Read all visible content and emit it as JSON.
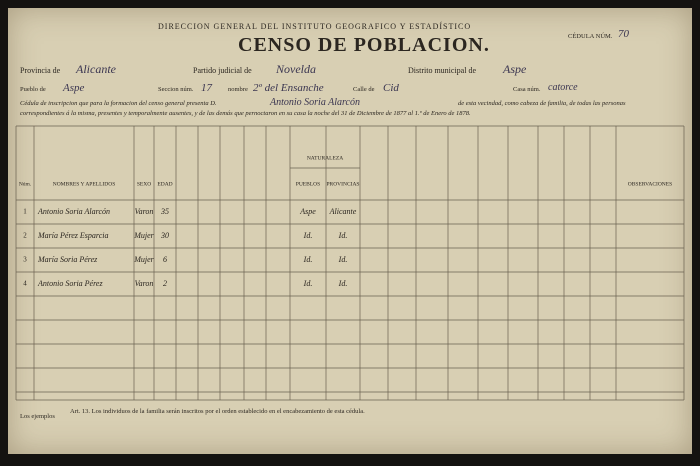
{
  "header": {
    "institution": "DIRECCION GENERAL DEL INSTITUTO GEOGRAFICO Y ESTADÍSTICO",
    "cedula_label": "CÉDULA NÚM.",
    "cedula_number": "70",
    "title": "CENSO DE POBLACION."
  },
  "fields": {
    "provincia_label": "Provincia de",
    "provincia": "Alicante",
    "partido_label": "Partido judicial de",
    "partido": "Novelda",
    "distrito_label": "Distrito municipal de",
    "distrito": "Aspe",
    "pueblo_label": "Pueblo de",
    "pueblo": "Aspe",
    "seccion_label": "Seccion núm.",
    "seccion": "17",
    "nombre_label": "nombre",
    "nombre": "2º del Ensanche",
    "calle_label": "Calle de",
    "calle": "Cid",
    "casa_label": "Casa núm.",
    "casa": "catorce"
  },
  "intro": {
    "line1_a": "Cédula de inscripcion que para la formacion del censo general presenta D.",
    "declarant": "Antonio Soria Alarcón",
    "line1_b": "de esta vecindad, como cabeza de familia, de todas las personas",
    "line2": "correspondientes á la misma, presentes y temporalmente ausentes, y de las demás que pernoctaron en su casa la noche del 31 de Diciembre de 1877 al 1.º de Enero de 1878."
  },
  "table": {
    "group_header": "NATURALEZA",
    "columns": [
      "Núm.",
      "NOMBRES Y APELLIDOS",
      "SEXO",
      "EDAD",
      "PUEBLOS",
      "PROVINCIAS",
      "OBSERVACIONES"
    ],
    "rows": [
      [
        "1",
        "Antonio Soria Alarcón",
        "Varon",
        "35",
        "Aspe",
        "Alicante",
        null
      ],
      [
        "2",
        "María Pérez Esparcia",
        "Mujer",
        "30",
        "Id.",
        "Id.",
        null
      ],
      [
        "3",
        "María Soria Pérez",
        "Mujer",
        "6",
        "Id.",
        "Id.",
        null
      ],
      [
        "4",
        "Antonio Soria Pérez",
        "Varon",
        "2",
        "Id.",
        "Id.",
        null
      ]
    ]
  },
  "footer": {
    "label": "Los ejemplos",
    "note": "Art. 13. Los individuos de la familia serán inscritos por el orden establecido en el encabezamiento de esta cédula."
  }
}
